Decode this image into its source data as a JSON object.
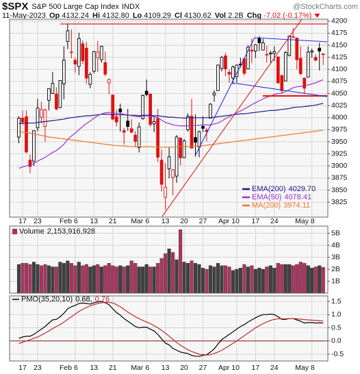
{
  "header": {
    "symbol": "$SPX",
    "name": "S&P 500 Large Cap Index",
    "exchange": "INDX",
    "source": "@StockCharts.com",
    "date": "11-May-2023",
    "quote": [
      {
        "label": "Op",
        "value": "4132.24"
      },
      {
        "label": "Hi",
        "value": "4132.80"
      },
      {
        "label": "Lo",
        "value": "4109.29"
      },
      {
        "label": "Cl",
        "value": "4130.62"
      },
      {
        "label": "Vol",
        "value": "2.2B"
      },
      {
        "label": "Chg",
        "value": "-7.02 (-0.17%)"
      }
    ]
  },
  "chart_data": [
    {
      "type": "candlestick",
      "categories": [
        null,
        "17",
        null,
        null,
        null,
        "23",
        null,
        null,
        null,
        null,
        null,
        null,
        null,
        null,
        null,
        "Feb 6",
        null,
        null,
        null,
        null,
        "13",
        null,
        null,
        null,
        null,
        "21",
        null,
        null,
        null,
        null,
        null,
        null,
        null,
        null,
        "Mar 6",
        null,
        null,
        null,
        null,
        "13",
        null,
        null,
        null,
        null,
        "20",
        null,
        null,
        null,
        null,
        "27",
        null,
        null,
        null,
        null,
        null,
        null,
        null,
        null,
        "Apr 10",
        null,
        null,
        null,
        null,
        "17",
        null,
        null,
        null,
        null,
        "24",
        null,
        null,
        null,
        null,
        null,
        null,
        null,
        null,
        null,
        "May 8",
        null,
        null,
        null
      ],
      "open": [
        3960,
        3999,
        4002,
        3912,
        3910,
        3979,
        4001,
        3982,
        4036,
        4050,
        4049,
        4021,
        4070,
        4158,
        4136,
        4119,
        4106,
        4153,
        4144,
        4069,
        4096,
        4124,
        4120,
        4114,
        4072,
        4047,
        4002,
        4018,
        3973,
        3993,
        3977,
        3964,
        3938,
        3998,
        4055,
        4049,
        3987,
        3998,
        3912,
        3835,
        3894,
        3876,
        3879,
        3958,
        3917,
        3975,
        4003,
        3959,
        3939,
        3982,
        3974,
        3999,
        4047,
        4056,
        4102,
        4128,
        4094,
        4082,
        4085,
        4111,
        4122,
        4101,
        4140,
        4138,
        4164,
        4140,
        4131,
        4132,
        4133,
        4126,
        4087,
        4076,
        4129,
        4166,
        4165,
        4123,
        4082,
        4084,
        4136,
        4125,
        4144,
        4132.24
      ],
      "high": [
        4003,
        4015,
        4015,
        3923,
        3973,
        4039,
        4033,
        4019,
        4060,
        4095,
        4063,
        4077,
        4148,
        4195,
        4183,
        4125,
        4176,
        4160,
        4157,
        4094,
        4138,
        4159,
        4149,
        4137,
        4081,
        4048,
        4017,
        4029,
        3979,
        4018,
        3997,
        3972,
        3990,
        4048,
        4079,
        4050,
        4000,
        4018,
        3934,
        3906,
        3938,
        3894,
        3964,
        3959,
        3956,
        4009,
        4039,
        4007,
        3973,
        4003,
        3979,
        4030,
        4057,
        4110,
        4128,
        4134,
        4100,
        4108,
        4110,
        4124,
        4124,
        4150,
        4164,
        4152,
        4169,
        4163,
        4149,
        4139,
        4148,
        4127,
        4090,
        4138,
        4170,
        4186,
        4165,
        4148,
        4083,
        4148,
        4143,
        4131,
        4155,
        4132.8
      ],
      "low": [
        3947,
        3985,
        3926,
        3885,
        3900,
        3972,
        3989,
        3950,
        4015,
        4049,
        4015,
        4020,
        4038,
        4142,
        4123,
        4093,
        4088,
        4111,
        4070,
        4061,
        4092,
        4095,
        4114,
        4086,
        4048,
        3995,
        3982,
        3971,
        3944,
        3973,
        3968,
        3940,
        3928,
        3996,
        4044,
        3981,
        3970,
        3908,
        3847,
        3809,
        3874,
        3839,
        3865,
        3901,
        3917,
        3971,
        3936,
        3919,
        3918,
        3970,
        3951,
        3999,
        4033,
        4056,
        4096,
        4086,
        4072,
        4069,
        4073,
        4104,
        4087,
        4100,
        4113,
        4124,
        4138,
        4140,
        4114,
        4113,
        4117,
        4071,
        4050,
        4076,
        4127,
        4164,
        4100,
        4088,
        4049,
        4084,
        4124,
        4117,
        4098,
        4109.29
      ],
      "close": [
        3999,
        3991,
        3929,
        3899,
        3973,
        4020,
        4017,
        4016,
        4060,
        4071,
        4018,
        4077,
        4119,
        4180,
        4136,
        4111,
        4164,
        4118,
        4082,
        4090,
        4137,
        4136,
        4148,
        4090,
        4079,
        3997,
        3991,
        4012,
        3970,
        3982,
        3970,
        3951,
        3981,
        4046,
        4048,
        3986,
        3992,
        3918,
        3862,
        3856,
        3919,
        3892,
        3960,
        3917,
        3952,
        4003,
        3937,
        3949,
        3971,
        3978,
        3971,
        4028,
        4051,
        4109,
        4125,
        4101,
        4090,
        4105,
        4109,
        4109,
        4092,
        4146,
        4138,
        4151,
        4155,
        4155,
        4130,
        4134,
        4137,
        4072,
        4056,
        4135,
        4169,
        4168,
        4120,
        4091,
        4061,
        4136,
        4138,
        4119,
        4138,
        4130.62
      ],
      "up_color": "#000000",
      "down_color": "#e01010",
      "ylim": [
        3794,
        4204
      ],
      "yticks": [
        3825,
        3850,
        3875,
        3900,
        3925,
        3950,
        3975,
        4000,
        4025,
        4050,
        4075,
        4100,
        4125,
        4150,
        4175,
        4200
      ],
      "grid": true,
      "legend": "lower right",
      "overlays": [
        {
          "name": "EMA(200)",
          "color": "#1a1a8c",
          "legend_value": "4029.70",
          "values": [
            3988,
            3988,
            3989,
            3989,
            3989,
            3990,
            3991,
            3992,
            3993,
            3994,
            3995,
            3996,
            3997,
            3999,
            4000,
            4001,
            4002,
            4003,
            4004,
            4004,
            4005,
            4006,
            4007,
            4007,
            4007,
            4006,
            4006,
            4006,
            4006,
            4005,
            4005,
            4005,
            4004,
            4005,
            4005,
            4005,
            4004,
            4004,
            4003,
            4002,
            4001,
            4001,
            4000,
            4000,
            3999,
            4000,
            4000,
            4000,
            4000,
            4000,
            4000,
            4000,
            4001,
            4002,
            4003,
            4004,
            4005,
            4006,
            4007,
            4008,
            4008,
            4009,
            4010,
            4011,
            4012,
            4013,
            4014,
            4015,
            4015,
            4016,
            4017,
            4018,
            4019,
            4021,
            4022,
            4022,
            4023,
            4024,
            4025,
            4026,
            4028,
            4029.7
          ]
        },
        {
          "name": "EMA(50)",
          "color": "#9932cc",
          "legend_value": "4078.41",
          "values": [
            3895,
            3898,
            3900,
            3902,
            3905,
            3910,
            3914,
            3918,
            3923,
            3928,
            3932,
            3938,
            3945,
            3955,
            3962,
            3968,
            3975,
            3982,
            3988,
            3993,
            3999,
            4004,
            4008,
            4010,
            4011,
            4010,
            4009,
            4009,
            4007,
            4006,
            4004,
            4003,
            4002,
            4003,
            4004,
            4003,
            4002,
            4000,
            3995,
            3990,
            3988,
            3985,
            3984,
            3983,
            3983,
            3983,
            3984,
            3984,
            3984,
            3985,
            3985,
            3985,
            3987,
            3989,
            3993,
            3998,
            4002,
            4006,
            4010,
            4014,
            4018,
            4022,
            4027,
            4031,
            4035,
            4039,
            4042,
            4045,
            4048,
            4050,
            4051,
            4054,
            4058,
            4062,
            4064,
            4065,
            4066,
            4068,
            4070,
            4072,
            4076,
            4078.41
          ]
        },
        {
          "name": "MA(200)",
          "color": "#ee7722",
          "legend_value": "3974.11",
          "values": [
            3972,
            3970,
            3969,
            3968,
            3966,
            3965,
            3963,
            3962,
            3960,
            3959,
            3958,
            3957,
            3956,
            3955,
            3954,
            3953,
            3952,
            3951,
            3950,
            3949,
            3948,
            3947,
            3946,
            3945,
            3944,
            3943,
            3942,
            3942,
            3941,
            3941,
            3940,
            3940,
            3940,
            3940,
            3940,
            3940,
            3939,
            3939,
            3939,
            3939,
            3939,
            3939,
            3939,
            3940,
            3940,
            3940,
            3941,
            3941,
            3942,
            3942,
            3943,
            3944,
            3945,
            3946,
            3947,
            3948,
            3949,
            3950,
            3951,
            3952,
            3953,
            3954,
            3955,
            3956,
            3957,
            3958,
            3959,
            3960,
            3961,
            3962,
            3963,
            3964,
            3965,
            3966,
            3967,
            3968,
            3969,
            3970,
            3971,
            3972,
            3973,
            3974.11
          ]
        }
      ]
    },
    {
      "type": "bar",
      "title": "Volume",
      "legend_value": "2,153,916,928",
      "up_color": "#404040",
      "down_color": "#a8365e",
      "values": [
        2.4,
        2.5,
        2.5,
        2.4,
        2.6,
        2.4,
        2.3,
        2.4,
        2.3,
        2.2,
        2.2,
        2.6,
        2.5,
        2.7,
        2.5,
        2.3,
        2.6,
        2.3,
        2.4,
        2.2,
        2.3,
        2.4,
        2.2,
        2.3,
        2.5,
        2.3,
        2.2,
        2.3,
        2.2,
        2.3,
        2.7,
        2.5,
        2.2,
        2.2,
        2.4,
        2.2,
        2.2,
        2.5,
        2.9,
        3.3,
        3.7,
        3.4,
        2.8,
        5.3,
        2.6,
        2.5,
        2.7,
        2.5,
        2.4,
        2.1,
        2.0,
        2.3,
        2.2,
        2.5,
        2.3,
        2.3,
        2.2,
        1.9,
        2.0,
        2.1,
        2.4,
        2.2,
        2.3,
        2.0,
        2.1,
        2.0,
        2.2,
        2.3,
        2.1,
        2.5,
        2.4,
        2.4,
        2.4,
        2.3,
        2.4,
        2.6,
        2.5,
        2.3,
        2.1,
        2.2,
        2.3,
        2.153916928
      ],
      "ylim": [
        0,
        5.6
      ],
      "yticks": [
        {
          "value": 1,
          "label": "1B"
        },
        {
          "value": 2,
          "label": "2B"
        },
        {
          "value": 3,
          "label": "3B"
        },
        {
          "value": 4,
          "label": "4B"
        },
        {
          "value": 5,
          "label": "5B"
        }
      ],
      "grid": true
    },
    {
      "type": "line",
      "title": "PMO(35,20,10)",
      "categories": [
        null,
        "17",
        null,
        null,
        null,
        "23",
        null,
        null,
        null,
        null,
        null,
        null,
        null,
        null,
        null,
        "Feb 6",
        null,
        null,
        null,
        null,
        "13",
        null,
        null,
        null,
        null,
        "21",
        null,
        null,
        null,
        null,
        null,
        null,
        null,
        null,
        "Mar 6",
        null,
        null,
        null,
        null,
        "13",
        null,
        null,
        null,
        null,
        "20",
        null,
        null,
        null,
        null,
        "27",
        null,
        null,
        null,
        null,
        null,
        null,
        null,
        null,
        "Apr 10",
        null,
        null,
        null,
        null,
        "17",
        null,
        null,
        null,
        null,
        "24",
        null,
        null,
        null,
        null,
        null,
        null,
        null,
        null,
        null,
        "May 8",
        null,
        null,
        null
      ],
      "series": [
        {
          "color": "#000000",
          "legend_value": "0.68,",
          "values": [
            0.1,
            0.15,
            0.18,
            0.18,
            0.25,
            0.35,
            0.45,
            0.55,
            0.68,
            0.8,
            0.82,
            0.92,
            1.05,
            1.22,
            1.3,
            1.35,
            1.42,
            1.44,
            1.42,
            1.4,
            1.45,
            1.48,
            1.5,
            1.45,
            1.38,
            1.22,
            1.08,
            0.98,
            0.85,
            0.75,
            0.65,
            0.55,
            0.5,
            0.52,
            0.52,
            0.45,
            0.38,
            0.25,
            0.08,
            -0.08,
            -0.15,
            -0.28,
            -0.35,
            -0.42,
            -0.45,
            -0.48,
            -0.55,
            -0.58,
            -0.58,
            -0.55,
            -0.52,
            -0.42,
            -0.3,
            -0.12,
            0.05,
            0.15,
            0.25,
            0.35,
            0.45,
            0.55,
            0.62,
            0.72,
            0.8,
            0.88,
            0.95,
            1.0,
            1.0,
            1.02,
            1.0,
            0.92,
            0.82,
            0.82,
            0.85,
            0.85,
            0.8,
            0.75,
            0.68,
            0.7,
            0.7,
            0.68,
            0.69,
            0.68
          ]
        },
        {
          "color": "#c0282e",
          "legend_value": "0.76",
          "values": [
            -0.1,
            -0.05,
            0.0,
            0.05,
            0.1,
            0.15,
            0.22,
            0.3,
            0.38,
            0.47,
            0.55,
            0.62,
            0.72,
            0.82,
            0.92,
            1.02,
            1.12,
            1.2,
            1.27,
            1.33,
            1.38,
            1.42,
            1.45,
            1.47,
            1.47,
            1.44,
            1.38,
            1.3,
            1.2,
            1.1,
            1.01,
            0.92,
            0.85,
            0.78,
            0.72,
            0.66,
            0.58,
            0.5,
            0.4,
            0.3,
            0.18,
            0.06,
            -0.06,
            -0.16,
            -0.25,
            -0.33,
            -0.4,
            -0.45,
            -0.5,
            -0.52,
            -0.53,
            -0.52,
            -0.48,
            -0.42,
            -0.35,
            -0.27,
            -0.18,
            -0.09,
            0.0,
            0.1,
            0.2,
            0.3,
            0.4,
            0.5,
            0.58,
            0.66,
            0.72,
            0.78,
            0.82,
            0.84,
            0.84,
            0.84,
            0.85,
            0.85,
            0.84,
            0.83,
            0.81,
            0.8,
            0.79,
            0.78,
            0.77,
            0.76
          ]
        }
      ],
      "ylim": [
        -0.76,
        1.71
      ],
      "yticks": [
        {
          "value": -0.5,
          "label": "-0.5"
        },
        {
          "value": 0,
          "label": "0.0"
        },
        0.5,
        {
          "value": 1,
          "label": "1.0"
        },
        1.5
      ],
      "zero_line_color": "#8b1a1a",
      "grid": true
    }
  ]
}
